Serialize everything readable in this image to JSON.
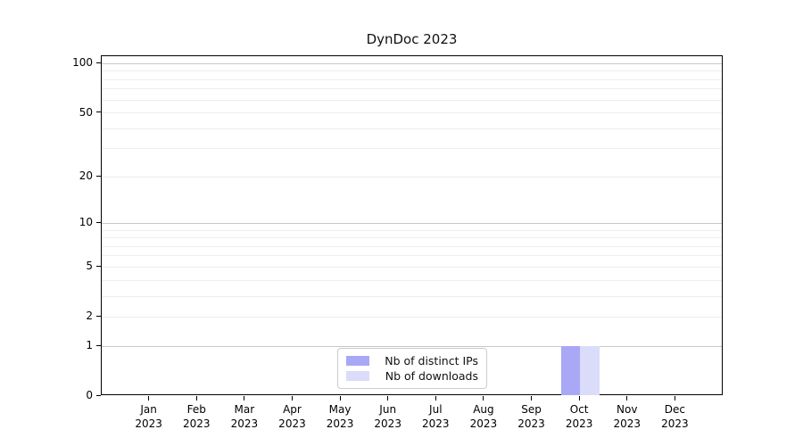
{
  "figure": {
    "background": "#ffffff"
  },
  "chart_data": {
    "type": "bar",
    "title": "DynDoc 2023",
    "categories": [
      "Jan",
      "Feb",
      "Mar",
      "Apr",
      "May",
      "Jun",
      "Jul",
      "Aug",
      "Sep",
      "Oct",
      "Nov",
      "Dec"
    ],
    "category_year": "2023",
    "series": [
      {
        "name": "Nb of distinct IPs",
        "color": "#a8a8f7",
        "values": [
          0,
          0,
          0,
          0,
          0,
          0,
          0,
          0,
          0,
          1,
          0,
          0
        ]
      },
      {
        "name": "Nb of downloads",
        "color": "#dbdbfa",
        "values": [
          0,
          0,
          0,
          0,
          0,
          0,
          0,
          0,
          0,
          1,
          0,
          0
        ]
      }
    ],
    "xlabel": "",
    "ylabel": "",
    "yscale": "log1p",
    "ylim": [
      0,
      111
    ],
    "yticks": [
      0,
      1,
      2,
      5,
      10,
      20,
      50,
      100
    ],
    "grid_major": [
      1,
      10,
      100
    ],
    "grid_minor": [
      2,
      3,
      4,
      5,
      6,
      7,
      8,
      9,
      20,
      30,
      40,
      50,
      60,
      70,
      80,
      90
    ],
    "legend_position": "lower center",
    "colors": {
      "grid_major": "#c8c8c8",
      "grid_minor": "#ededed",
      "spine": "#000000",
      "text": "#000000"
    }
  }
}
